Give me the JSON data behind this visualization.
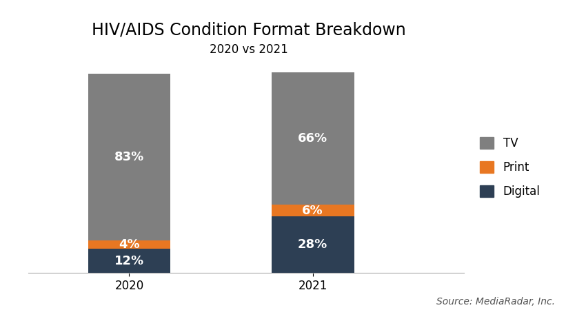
{
  "title": "HIV/AIDS Condition Format Breakdown",
  "subtitle": "2020 vs 2021",
  "source": "Source: MediaRadar, Inc.",
  "categories": [
    "2020",
    "2021"
  ],
  "segments": {
    "Digital": [
      12,
      28
    ],
    "Print": [
      4,
      6
    ],
    "TV": [
      83,
      66
    ]
  },
  "colors": {
    "Digital": "#2d3f54",
    "Print": "#e87722",
    "TV": "#7f7f7f"
  },
  "label_colors": {
    "Digital": "#ffffff",
    "Print": "#ffffff",
    "TV": "#ffffff"
  },
  "bar_width": 0.18,
  "x_positions": [
    0.22,
    0.62
  ],
  "xlim": [
    0.0,
    0.95
  ],
  "ylim": [
    0,
    105
  ],
  "title_fontsize": 17,
  "subtitle_fontsize": 12,
  "label_fontsize": 13,
  "tick_fontsize": 12,
  "legend_fontsize": 12,
  "source_fontsize": 10,
  "background_color": "#ffffff"
}
